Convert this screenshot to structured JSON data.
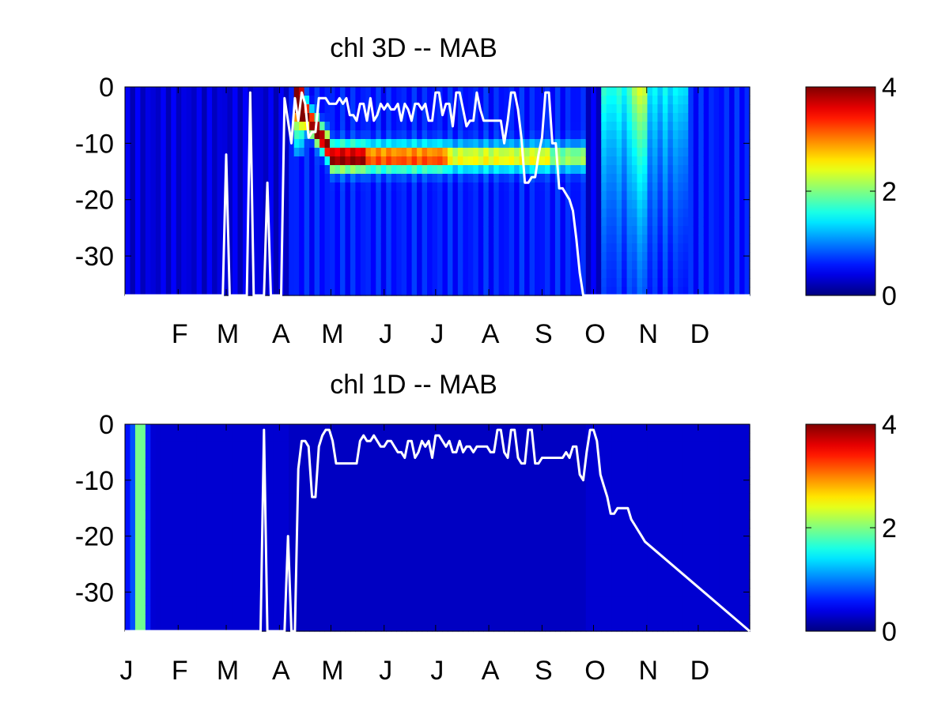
{
  "chart_data": [
    {
      "type": "heatmap",
      "title": "chl 3D   -- MAB",
      "xlabel": "",
      "ylabel": "",
      "x_tick_labels": [
        "F",
        "M",
        "A",
        "M",
        "J",
        "J",
        "A",
        "S",
        "O",
        "N",
        "D"
      ],
      "x_tick_days": [
        32,
        60,
        91,
        121,
        152,
        182,
        213,
        244,
        274,
        305,
        335
      ],
      "xlim": [
        1,
        365
      ],
      "ylim": [
        -37,
        0
      ],
      "y_ticks": [
        0,
        -10,
        -20,
        -30
      ],
      "colorbar": {
        "colormap": "jet",
        "range": [
          0,
          4
        ],
        "ticks": [
          "0",
          "2",
          "4"
        ]
      },
      "line_series": {
        "color": "#ffffff",
        "x": [
          1,
          58,
          60,
          62,
          64,
          72,
          74,
          76,
          82,
          84,
          86,
          92,
          94,
          98,
          100,
          102,
          104,
          106,
          108,
          110,
          112,
          114,
          116,
          118,
          120,
          122,
          124,
          126,
          128,
          130,
          132,
          134,
          136,
          138,
          140,
          142,
          144,
          146,
          148,
          150,
          152,
          154,
          156,
          158,
          160,
          162,
          164,
          166,
          168,
          170,
          172,
          174,
          176,
          178,
          180,
          182,
          184,
          186,
          188,
          190,
          192,
          194,
          196,
          198,
          200,
          202,
          204,
          206,
          208,
          210,
          212,
          214,
          216,
          218,
          220,
          222,
          224,
          226,
          228,
          230,
          232,
          234,
          236,
          238,
          240,
          242,
          244,
          246,
          248,
          250,
          252,
          254,
          256,
          258,
          260,
          262,
          264,
          266,
          268,
          270,
          272,
          274,
          276,
          278,
          280,
          282,
          284,
          286,
          288,
          290,
          292,
          294,
          296,
          298,
          300,
          302,
          304,
          306,
          365
        ],
        "y": [
          -37,
          -37,
          -12,
          -37,
          -37,
          -37,
          -1,
          -37,
          -37,
          -17,
          -37,
          -37,
          -2,
          -10,
          -2,
          -6,
          -1,
          -3,
          -9,
          -8,
          -8,
          -2,
          -2,
          -2,
          -3,
          -3,
          -3,
          -2,
          -3,
          -2,
          -5,
          -5,
          -6,
          -3,
          -3,
          -6,
          -2,
          -6,
          -5,
          -3,
          -4,
          -3,
          -4,
          -4,
          -3,
          -6,
          -3,
          -4,
          -6,
          -3,
          -3,
          -4,
          -3,
          -6,
          -6,
          -1,
          -1,
          -5,
          -3,
          -3,
          -7,
          -1,
          -1,
          -4,
          -7,
          -6,
          -6,
          -1,
          -4,
          -6,
          -6,
          -6,
          -6,
          -6,
          -6,
          -10,
          -6,
          -1,
          -1,
          -4,
          -9,
          -17,
          -17,
          -16,
          -16,
          -12,
          -9,
          -1,
          -1,
          -10,
          -10,
          -18,
          -18,
          -19,
          -20,
          -22,
          -27,
          -33,
          -37,
          -37,
          -37,
          -37,
          -37,
          -37,
          -37,
          -37,
          -37,
          -37,
          -37,
          -37,
          -37,
          -37,
          -37,
          -37,
          -37,
          -37,
          -37,
          -37,
          -37
        ]
      }
    },
    {
      "type": "heatmap",
      "title": "chl 1D   -- MAB",
      "xlabel": "",
      "ylabel": "",
      "x_tick_labels": [
        "J",
        "F",
        "M",
        "A",
        "M",
        "J",
        "J",
        "A",
        "S",
        "O",
        "N",
        "D"
      ],
      "x_tick_days": [
        1,
        32,
        60,
        91,
        121,
        152,
        182,
        213,
        244,
        274,
        305,
        335
      ],
      "xlim": [
        1,
        365
      ],
      "ylim": [
        -37,
        0
      ],
      "y_ticks": [
        0,
        -10,
        -20,
        -30
      ],
      "colorbar": {
        "colormap": "jet",
        "range": [
          0,
          4
        ],
        "ticks": [
          "0",
          "2",
          "4"
        ]
      },
      "line_series": {
        "color": "#ffffff",
        "x": [
          1,
          80,
          82,
          84,
          86,
          94,
          96,
          98,
          100,
          102,
          104,
          106,
          108,
          110,
          112,
          114,
          116,
          118,
          120,
          122,
          124,
          126,
          128,
          130,
          132,
          134,
          136,
          138,
          140,
          142,
          144,
          146,
          148,
          150,
          152,
          154,
          156,
          158,
          160,
          162,
          164,
          166,
          168,
          170,
          172,
          174,
          176,
          178,
          180,
          182,
          184,
          186,
          188,
          190,
          192,
          194,
          196,
          198,
          200,
          202,
          204,
          206,
          208,
          210,
          212,
          214,
          216,
          218,
          220,
          222,
          224,
          226,
          228,
          230,
          232,
          234,
          236,
          238,
          240,
          242,
          244,
          246,
          248,
          250,
          252,
          254,
          256,
          258,
          260,
          262,
          264,
          266,
          268,
          270,
          272,
          274,
          276,
          278,
          280,
          282,
          284,
          286,
          288,
          290,
          292,
          294,
          296,
          298,
          300,
          302,
          304,
          365
        ],
        "y": [
          -37,
          -37,
          -1,
          -37,
          -37,
          -37,
          -20,
          -37,
          -37,
          -8,
          -3,
          -3,
          -4,
          -13,
          -13,
          -4,
          -2,
          -1,
          -1,
          -3,
          -7,
          -7,
          -7,
          -7,
          -7,
          -7,
          -7,
          -3,
          -2,
          -3,
          -3,
          -2,
          -3,
          -4,
          -4,
          -3,
          -3,
          -4,
          -5,
          -5,
          -6,
          -3,
          -3,
          -6,
          -5,
          -3,
          -4,
          -3,
          -6,
          -2,
          -2,
          -3,
          -4,
          -3,
          -5,
          -5,
          -3,
          -5,
          -4,
          -4,
          -5,
          -4,
          -4,
          -4,
          -4,
          -5,
          -5,
          -1,
          -1,
          -5,
          -6,
          -1,
          -1,
          -6,
          -7,
          -7,
          -1,
          -1,
          -7,
          -7,
          -6,
          -6,
          -6,
          -6,
          -6,
          -6,
          -6,
          -5,
          -6,
          -4,
          -4,
          -9,
          -10,
          -5,
          -1,
          -1,
          -3,
          -9,
          -11,
          -13,
          -16,
          -16,
          -15,
          -15,
          -15,
          -15,
          -17,
          -18,
          -19,
          -20,
          -21,
          -37
        ]
      }
    }
  ]
}
